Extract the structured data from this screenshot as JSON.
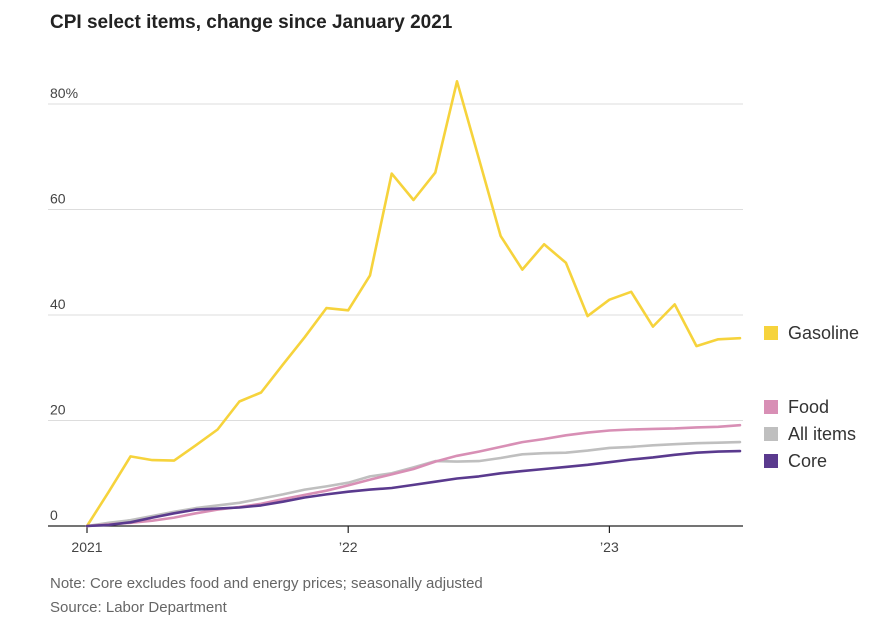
{
  "title": "CPI select items, change since January 2021",
  "note": "Note: Core excludes food and energy prices; seasonally adjusted",
  "source": "Source: Labor Department",
  "chart_data": {
    "type": "line",
    "title": "CPI select items, change since January 2021",
    "xlabel": "",
    "ylabel": "",
    "ylim": [
      0,
      85
    ],
    "xlim": [
      0,
      30
    ],
    "x_ticks": [
      {
        "pos": 0,
        "label": "2021"
      },
      {
        "pos": 12,
        "label": "’22"
      },
      {
        "pos": 24,
        "label": "’23"
      }
    ],
    "y_ticks": [
      {
        "value": 0,
        "label": "0"
      },
      {
        "value": 20,
        "label": "20"
      },
      {
        "value": 40,
        "label": "40"
      },
      {
        "value": 60,
        "label": "60"
      },
      {
        "value": 80,
        "label": "80%"
      }
    ],
    "grid": true,
    "legend_placement": "right",
    "series": [
      {
        "name": "Gasoline",
        "color": "#f6d33c",
        "values": [
          0,
          6.5,
          13.2,
          12.5,
          12.4,
          15.3,
          18.3,
          23.6,
          25.3,
          30.6,
          35.8,
          41.3,
          40.9,
          47.5,
          66.8,
          61.8,
          67.0,
          84.3,
          69.7,
          55.0,
          48.6,
          53.4,
          49.9,
          39.8,
          42.9,
          44.4,
          37.8,
          42.0,
          34.1,
          35.4,
          35.6
        ]
      },
      {
        "name": "Food",
        "color": "#d88fb5",
        "values": [
          0,
          0.3,
          0.6,
          1.0,
          1.6,
          2.4,
          3.1,
          3.6,
          4.2,
          5.1,
          5.9,
          6.7,
          7.7,
          8.8,
          9.8,
          10.8,
          12.2,
          13.3,
          14.1,
          15.0,
          15.9,
          16.5,
          17.2,
          17.7,
          18.1,
          18.3,
          18.4,
          18.5,
          18.7,
          18.8,
          19.1
        ]
      },
      {
        "name": "All items",
        "color": "#bfbfbf",
        "values": [
          0,
          0.6,
          1.1,
          1.9,
          2.7,
          3.4,
          3.9,
          4.4,
          5.2,
          6.0,
          6.9,
          7.5,
          8.2,
          9.4,
          10.0,
          11.1,
          12.3,
          12.2,
          12.3,
          12.9,
          13.6,
          13.8,
          13.9,
          14.3,
          14.8,
          15.0,
          15.3,
          15.5,
          15.7,
          15.8,
          15.9
        ]
      },
      {
        "name": "Core",
        "color": "#5a3a8e",
        "values": [
          0,
          0.2,
          0.7,
          1.6,
          2.4,
          3.1,
          3.3,
          3.5,
          3.9,
          4.6,
          5.4,
          6.0,
          6.5,
          6.9,
          7.2,
          7.8,
          8.4,
          9.0,
          9.4,
          10.0,
          10.4,
          10.8,
          11.2,
          11.6,
          12.1,
          12.6,
          13.0,
          13.5,
          13.9,
          14.1,
          14.2
        ]
      }
    ]
  }
}
